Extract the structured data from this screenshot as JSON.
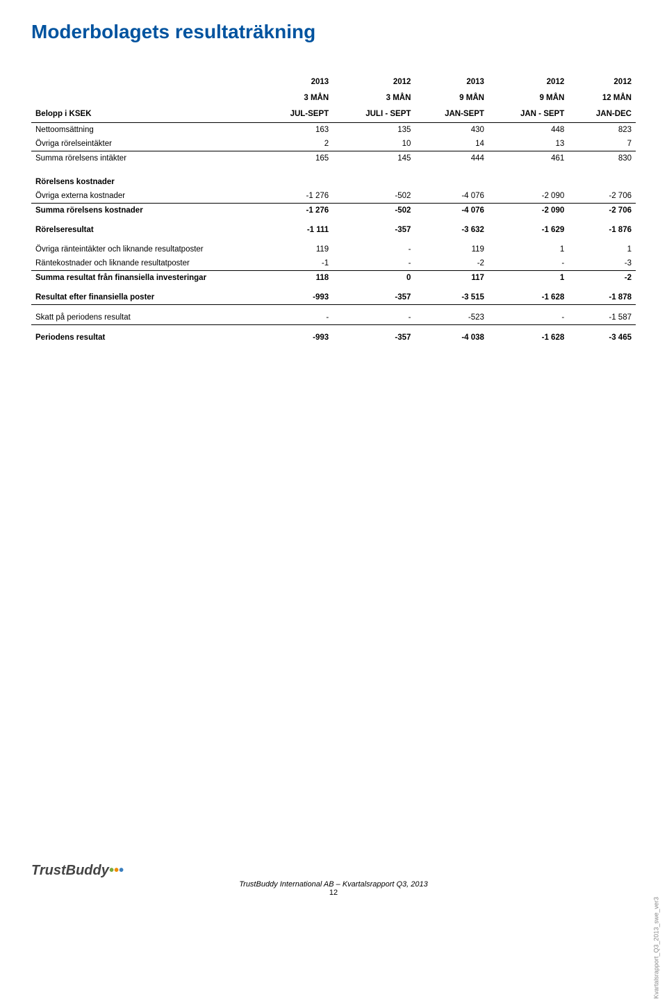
{
  "title": "Moderbolagets resultaträkning",
  "title_color": "#00539f",
  "columns": [
    {
      "l1": "",
      "l2": "",
      "l3": "Belopp i KSEK"
    },
    {
      "l1": "2013",
      "l2": "3 MÅN",
      "l3": "JUL-SEPT"
    },
    {
      "l1": "2012",
      "l2": "3 MÅN",
      "l3": "JULI - SEPT"
    },
    {
      "l1": "2013",
      "l2": "9 MÅN",
      "l3": "JAN-SEPT"
    },
    {
      "l1": "2012",
      "l2": "9 MÅN",
      "l3": "JAN - SEPT"
    },
    {
      "l1": "2012",
      "l2": "12 MÅN",
      "l3": "JAN-DEC"
    }
  ],
  "rows": [
    {
      "type": "data",
      "label": "Nettoomsättning",
      "cells": [
        "163",
        "135",
        "430",
        "448",
        "823"
      ]
    },
    {
      "type": "underline",
      "label": "Övriga rörelseintäkter",
      "cells": [
        "2",
        "10",
        "14",
        "13",
        "7"
      ]
    },
    {
      "type": "data",
      "label": "Summa rörelsens intäkter",
      "cells": [
        "165",
        "145",
        "444",
        "461",
        "830"
      ]
    },
    {
      "type": "spacer"
    },
    {
      "type": "section",
      "label": "Rörelsens kostnader"
    },
    {
      "type": "underline",
      "label": "Övriga externa kostnader",
      "cells": [
        "-1 276",
        "-502",
        "-4 076",
        "-2 090",
        "-2 706"
      ]
    },
    {
      "type": "bold",
      "label": "Summa rörelsens kostnader",
      "cells": [
        "-1 276",
        "-502",
        "-4 076",
        "-2 090",
        "-2 706"
      ]
    },
    {
      "type": "spacer"
    },
    {
      "type": "bold",
      "label": "Rörelseresultat",
      "cells": [
        "-1 111",
        "-357",
        "-3 632",
        "-1 629",
        "-1 876"
      ]
    },
    {
      "type": "spacer"
    },
    {
      "type": "data",
      "label": "Övriga ränteintäkter och liknande resultatposter",
      "cells": [
        "119",
        "-",
        "119",
        "1",
        "1"
      ]
    },
    {
      "type": "underline",
      "label": "Räntekostnader och liknande resultatposter",
      "cells": [
        "-1",
        "-",
        "-2",
        "-",
        "-3"
      ]
    },
    {
      "type": "bold",
      "label": "Summa resultat från finansiella investeringar",
      "cells": [
        "118",
        "0",
        "117",
        "1",
        "-2"
      ]
    },
    {
      "type": "spacer"
    },
    {
      "type": "bold_underline",
      "label": "Resultat efter finansiella poster",
      "cells": [
        "-993",
        "-357",
        "-3 515",
        "-1 628",
        "-1 878"
      ]
    },
    {
      "type": "spacer"
    },
    {
      "type": "underline",
      "label": "Skatt på periodens resultat",
      "cells": [
        "-",
        "-",
        "-523",
        "-",
        "-1 587"
      ]
    },
    {
      "type": "spacer"
    },
    {
      "type": "bold",
      "label": "Periodens resultat",
      "cells": [
        "-993",
        "-357",
        "-4 038",
        "-1 628",
        "-3 465"
      ]
    }
  ],
  "footer": {
    "logo": "TrustBuddy",
    "title": "TrustBuddy International AB – Kvartalsrapport Q3, 2013",
    "page": "12",
    "side": "Kvartalsrapport_Q3_2013_swe_ver3"
  }
}
